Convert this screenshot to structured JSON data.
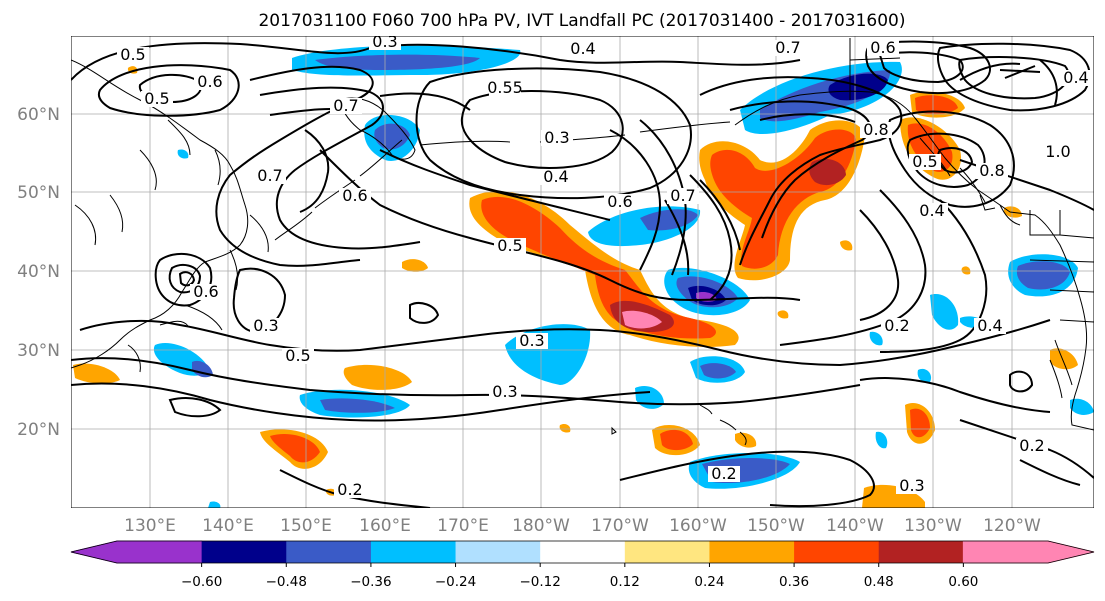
{
  "title": "2017031100 F060 700 hPa PV, IVT Landfall PC (2017031400 - 2017031600)",
  "map": {
    "lat_labels": [
      "60°N",
      "50°N",
      "40°N",
      "30°N",
      "20°N"
    ],
    "lon_labels": [
      "130°E",
      "140°E",
      "150°E",
      "160°E",
      "170°E",
      "180°W",
      "170°W",
      "160°W",
      "150°W",
      "140°W",
      "130°W",
      "120°W"
    ],
    "contour_labels": [
      "0.5",
      "0.3",
      "0.4",
      "0.6",
      "0.5",
      "0.7",
      "0.6",
      "0.7",
      "0.55",
      "0.3",
      "0.4",
      "0.6",
      "0.7",
      "0.8",
      "1.0",
      "0.8",
      "0.4",
      "0.5",
      "0.4",
      "0.7",
      "0.6",
      "0.5",
      "0.6",
      "0.3",
      "0.5",
      "0.3",
      "0.3",
      "0.2",
      "0.4",
      "0.2",
      "0.3",
      "0.2",
      "0.2"
    ]
  },
  "colorbar": {
    "colors": [
      "#9932cc",
      "#00008b",
      "#3a5bc7",
      "#00bfff",
      "#b0e0ff",
      "#ffffff",
      "#ffe680",
      "#ffa500",
      "#ff4500",
      "#b22222",
      "#ff85b3"
    ],
    "tick_labels": [
      "−0.60",
      "−0.48",
      "−0.36",
      "−0.24",
      "−0.12",
      "0.12",
      "0.24",
      "0.36",
      "0.48",
      "0.60"
    ]
  },
  "colors": {
    "contour": "#000000",
    "grid": "#aaaaaa",
    "coast": "#000000"
  }
}
